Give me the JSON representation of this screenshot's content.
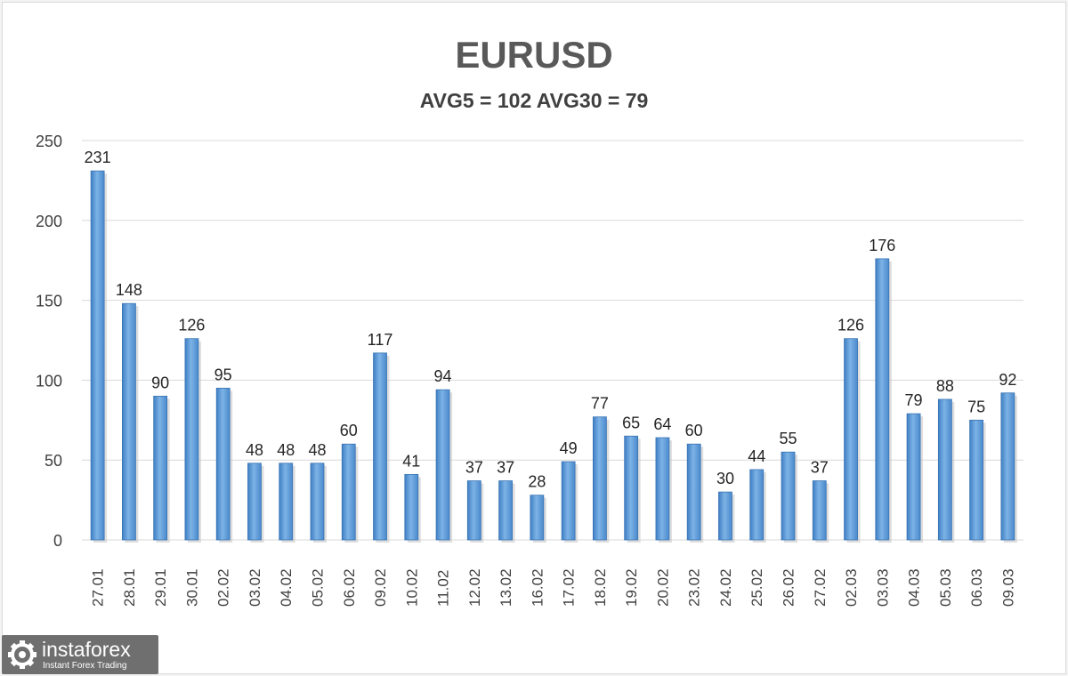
{
  "chart_data": {
    "type": "bar",
    "title": "EURUSD",
    "subtitle": "AVG5 = 102 AVG30 = 79",
    "categories": [
      "27.01",
      "28.01",
      "29.01",
      "30.01",
      "02.02",
      "03.02",
      "04.02",
      "05.02",
      "06.02",
      "09.02",
      "10.02",
      "11.02",
      "12.02",
      "13.02",
      "16.02",
      "17.02",
      "18.02",
      "19.02",
      "20.02",
      "23.02",
      "24.02",
      "25.02",
      "26.02",
      "27.02",
      "02.03",
      "03.03",
      "04.03",
      "05.03",
      "06.03",
      "09.03"
    ],
    "values": [
      231,
      148,
      90,
      126,
      95,
      48,
      48,
      48,
      60,
      117,
      41,
      94,
      37,
      37,
      28,
      49,
      77,
      65,
      64,
      60,
      30,
      44,
      55,
      37,
      126,
      176,
      79,
      88,
      75,
      92
    ],
    "yticks": [
      0,
      50,
      100,
      150,
      200,
      250
    ],
    "ylim": [
      0,
      250
    ],
    "grid": true,
    "legend": "none",
    "bar_color": "#5b9bd5"
  },
  "watermark": {
    "name": "instaforex",
    "tagline": "Instant Forex Trading"
  }
}
